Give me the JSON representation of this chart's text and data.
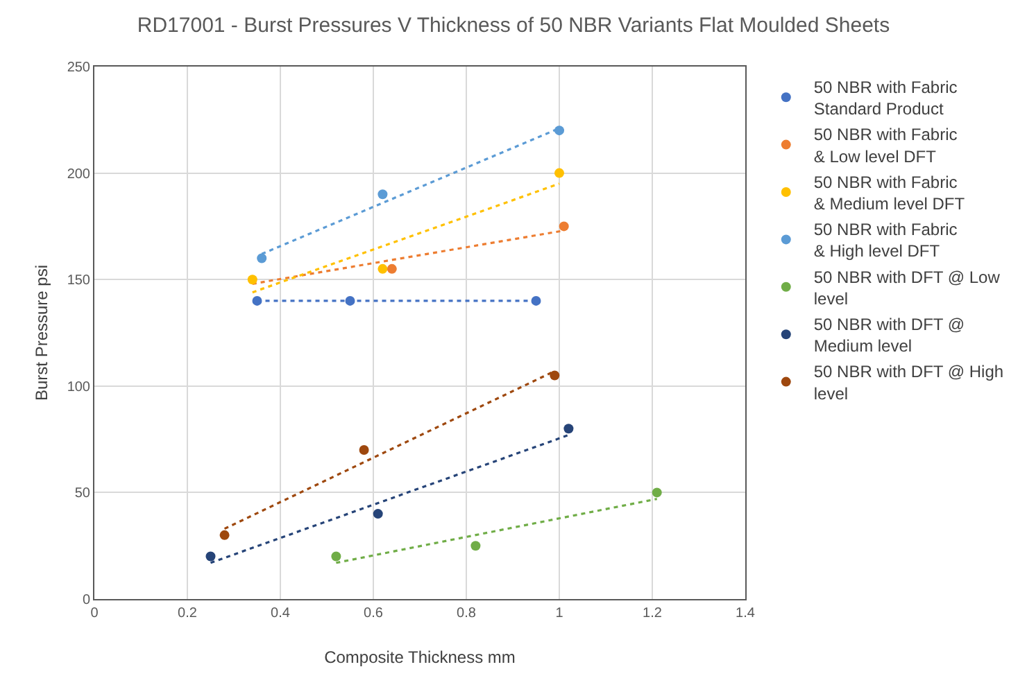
{
  "chart_data": {
    "type": "scatter",
    "title": "RD17001 - Burst Pressures V Thickness of 50 NBR Variants Flat Moulded Sheets",
    "xlabel": "Composite Thickness mm",
    "ylabel": "Burst Pressure psi",
    "xlim": [
      0,
      1.4
    ],
    "xticks": [
      0,
      0.2,
      0.4,
      0.6,
      0.8,
      1,
      1.2,
      1.4
    ],
    "ylim": [
      0,
      250
    ],
    "yticks": [
      0,
      50,
      100,
      150,
      200,
      250
    ],
    "grid": true,
    "legend": "right",
    "marker": "circle",
    "series": [
      {
        "name": "50 NBR with Fabric Standard Product",
        "color": "#4472c4",
        "x": [
          0.35,
          0.55,
          0.95
        ],
        "values": [
          140,
          140,
          140
        ]
      },
      {
        "name": "50 NBR with Fabric & Low level DFT",
        "color": "#ed7d31",
        "x": [
          0.64,
          1.01
        ],
        "values": [
          155,
          175
        ]
      },
      {
        "name": "50 NBR with Fabric & Medium level DFT",
        "color": "#ffc000",
        "x": [
          0.34,
          0.62,
          1.0
        ],
        "values": [
          150,
          155,
          200
        ]
      },
      {
        "name": "50 NBR with Fabric & High level DFT",
        "color": "#5b9bd5",
        "x": [
          0.36,
          0.62,
          1.0
        ],
        "values": [
          160,
          190,
          220
        ]
      },
      {
        "name": "50 NBR with DFT @ Low level",
        "color": "#70ad47",
        "x": [
          0.52,
          0.82,
          1.21
        ],
        "values": [
          20,
          25,
          50
        ]
      },
      {
        "name": "50 NBR with DFT @ Medium level",
        "color": "#264478",
        "x": [
          0.25,
          0.61,
          1.02
        ],
        "values": [
          20,
          40,
          80
        ]
      },
      {
        "name": "50 NBR with DFT @ High level",
        "color": "#9e480e",
        "x": [
          0.28,
          0.58,
          0.99
        ],
        "values": [
          30,
          70,
          105
        ]
      },
      {
        "type": "line",
        "line_style": "dotted",
        "marker": "none",
        "color": "#4472c4",
        "x": [
          0.35,
          0.95
        ],
        "values": [
          140,
          140
        ]
      },
      {
        "type": "line",
        "line_style": "dotted",
        "marker": "none",
        "color": "#ed7d31",
        "x": [
          0.34,
          1.01
        ],
        "values": [
          148,
          173
        ]
      },
      {
        "type": "line",
        "line_style": "dotted",
        "marker": "none",
        "color": "#ffc000",
        "x": [
          0.34,
          1.0
        ],
        "values": [
          144,
          195
        ]
      },
      {
        "type": "line",
        "line_style": "dotted",
        "marker": "none",
        "color": "#5b9bd5",
        "x": [
          0.36,
          1.0
        ],
        "values": [
          162,
          221
        ]
      },
      {
        "type": "line",
        "line_style": "dotted",
        "marker": "none",
        "color": "#70ad47",
        "x": [
          0.52,
          1.21
        ],
        "values": [
          17,
          47
        ]
      },
      {
        "type": "line",
        "line_style": "dotted",
        "marker": "none",
        "color": "#264478",
        "x": [
          0.25,
          1.02
        ],
        "values": [
          17,
          77
        ]
      },
      {
        "type": "line",
        "line_style": "dotted",
        "marker": "none",
        "color": "#9e480e",
        "x": [
          0.28,
          0.99
        ],
        "values": [
          33,
          107
        ]
      }
    ]
  }
}
